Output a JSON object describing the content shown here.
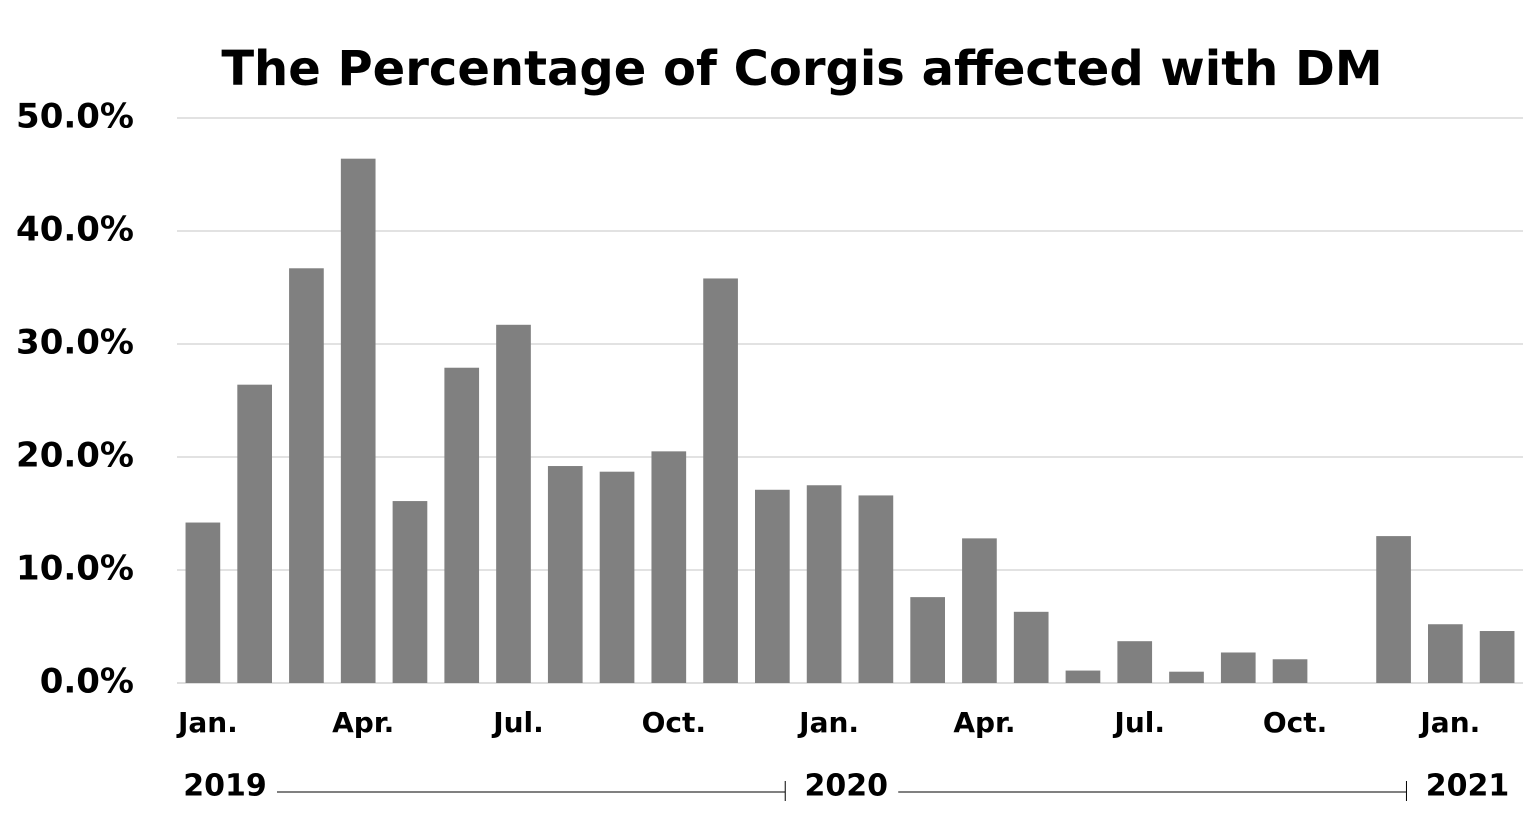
{
  "chart_data": {
    "type": "bar",
    "title": "The Percentage of Corgis affected with DM",
    "categories": [
      "Jan.",
      null,
      null,
      "Apr.",
      null,
      null,
      "Jul.",
      null,
      null,
      "Oct.",
      null,
      null,
      "Jan.",
      null,
      null,
      "Apr.",
      null,
      null,
      "Jul.",
      null,
      null,
      "Oct.",
      null,
      null,
      "Jan.",
      null
    ],
    "years": [
      "2019",
      "2020",
      "2021"
    ],
    "values": [
      14.2,
      26.4,
      36.7,
      46.4,
      16.1,
      27.9,
      31.7,
      19.2,
      18.7,
      20.5,
      35.8,
      17.1,
      17.5,
      16.6,
      7.6,
      12.8,
      6.3,
      1.1,
      3.7,
      1.0,
      2.7,
      2.1,
      null,
      13.0,
      5.2,
      4.6
    ],
    "color": "#808080",
    "ylim": [
      0,
      50
    ],
    "yticks": [
      {
        "value": 0,
        "label": "0.0%"
      },
      {
        "value": 10,
        "label": "10.0%"
      },
      {
        "value": 20,
        "label": "20.0%"
      },
      {
        "value": 30,
        "label": "30.0%"
      },
      {
        "value": 40,
        "label": "40.0%"
      },
      {
        "value": 50,
        "label": "50.0%"
      }
    ],
    "grid": true
  }
}
